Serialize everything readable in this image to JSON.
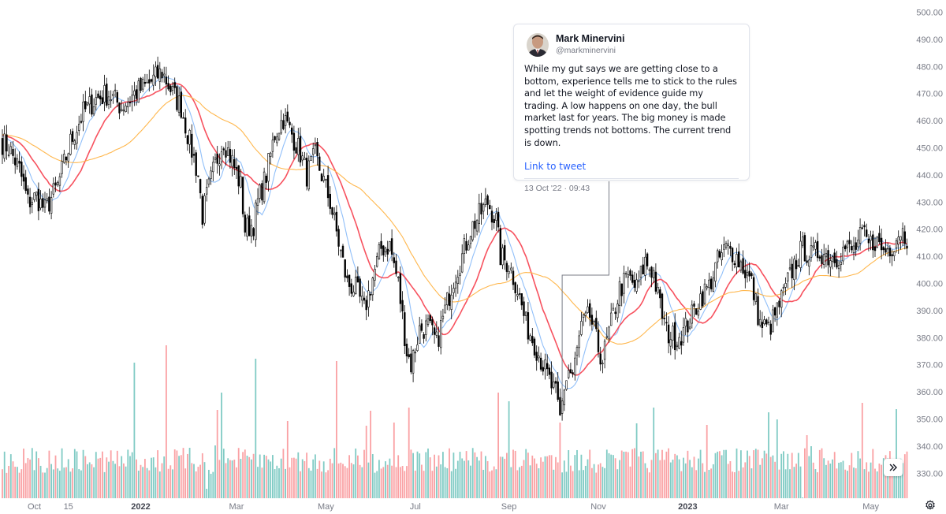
{
  "tweet": {
    "name": "Mark Minervini",
    "handle": "@markminervini",
    "text": "While my gut says we are getting close to a bottom, experience tells me to stick to the rules and let the weight of evidence guide my trading. A low happens on one day, the bull market last for years. The big money is made spotting trends not bottoms. The current trend is down.",
    "link_label": "Link to tweet",
    "date": "13 Oct '22 · 09:43"
  },
  "controls": {
    "scroll_icon": "double-chevron-right-icon",
    "settings_icon": "gear-icon"
  },
  "colors": {
    "candle": "#000000",
    "ma_fast": "#90bff9",
    "ma_mid": "#f7525f",
    "ma_slow": "#ffb74d",
    "volume_up": "#80cbc4",
    "volume_down": "#faa1a4"
  },
  "chart_data": {
    "type": "candlestick",
    "y_axis": {
      "position": "right",
      "ticks": [
        "500.00",
        "490.00",
        "480.00",
        "470.00",
        "460.00",
        "450.00",
        "440.00",
        "430.00",
        "420.00",
        "410.00",
        "400.00",
        "390.00",
        "380.00",
        "370.00",
        "360.00",
        "350.00",
        "340.00",
        "330.00"
      ]
    },
    "x_axis": {
      "ticks": [
        {
          "label": "Oct",
          "day": 15,
          "bold": false
        },
        {
          "label": "15",
          "day": 31,
          "bold": false
        },
        {
          "label": "2022",
          "day": 65,
          "bold": true
        },
        {
          "label": "Mar",
          "day": 110,
          "bold": false
        },
        {
          "label": "May",
          "day": 152,
          "bold": false
        },
        {
          "label": "Jul",
          "day": 194,
          "bold": false
        },
        {
          "label": "Sep",
          "day": 238,
          "bold": false
        },
        {
          "label": "Nov",
          "day": 280,
          "bold": false
        },
        {
          "label": "2023",
          "day": 322,
          "bold": true
        },
        {
          "label": "Mar",
          "day": 366,
          "bold": false
        },
        {
          "label": "May",
          "day": 408,
          "bold": false
        }
      ]
    },
    "day_count": 426,
    "price_path": [
      [
        0,
        452
      ],
      [
        3,
        450
      ],
      [
        8,
        442
      ],
      [
        12,
        430
      ],
      [
        16,
        432
      ],
      [
        20,
        427
      ],
      [
        26,
        436
      ],
      [
        32,
        452
      ],
      [
        38,
        463
      ],
      [
        44,
        468
      ],
      [
        50,
        470
      ],
      [
        56,
        465
      ],
      [
        62,
        470
      ],
      [
        68,
        473
      ],
      [
        75,
        478
      ],
      [
        80,
        470
      ],
      [
        84,
        465
      ],
      [
        88,
        452
      ],
      [
        92,
        440
      ],
      [
        94,
        425
      ],
      [
        96,
        432
      ],
      [
        100,
        444
      ],
      [
        104,
        453
      ],
      [
        108,
        445
      ],
      [
        112,
        436
      ],
      [
        114,
        420
      ],
      [
        118,
        422
      ],
      [
        120,
        430
      ],
      [
        124,
        440
      ],
      [
        128,
        455
      ],
      [
        132,
        461
      ],
      [
        136,
        455
      ],
      [
        140,
        448
      ],
      [
        143,
        440
      ],
      [
        147,
        447
      ],
      [
        150,
        440
      ],
      [
        154,
        430
      ],
      [
        158,
        415
      ],
      [
        162,
        400
      ],
      [
        166,
        398
      ],
      [
        170,
        390
      ],
      [
        174,
        402
      ],
      [
        178,
        413
      ],
      [
        182,
        414
      ],
      [
        186,
        400
      ],
      [
        190,
        375
      ],
      [
        192,
        370
      ],
      [
        196,
        383
      ],
      [
        200,
        384
      ],
      [
        204,
        378
      ],
      [
        208,
        390
      ],
      [
        212,
        402
      ],
      [
        216,
        410
      ],
      [
        220,
        420
      ],
      [
        224,
        425
      ],
      [
        228,
        430
      ],
      [
        232,
        423
      ],
      [
        234,
        410
      ],
      [
        238,
        407
      ],
      [
        242,
        398
      ],
      [
        246,
        385
      ],
      [
        250,
        378
      ],
      [
        254,
        370
      ],
      [
        258,
        362
      ],
      [
        260,
        359
      ],
      [
        262,
        350
      ],
      [
        264,
        362
      ],
      [
        266,
        368
      ],
      [
        268,
        366
      ],
      [
        272,
        384
      ],
      [
        276,
        388
      ],
      [
        280,
        376
      ],
      [
        282,
        372
      ],
      [
        286,
        385
      ],
      [
        290,
        398
      ],
      [
        294,
        402
      ],
      [
        298,
        398
      ],
      [
        302,
        408
      ],
      [
        306,
        404
      ],
      [
        308,
        395
      ],
      [
        312,
        382
      ],
      [
        316,
        380
      ],
      [
        320,
        382
      ],
      [
        324,
        388
      ],
      [
        328,
        395
      ],
      [
        332,
        399
      ],
      [
        336,
        408
      ],
      [
        340,
        413
      ],
      [
        344,
        411
      ],
      [
        348,
        406
      ],
      [
        352,
        400
      ],
      [
        356,
        385
      ],
      [
        360,
        383
      ],
      [
        364,
        390
      ],
      [
        368,
        398
      ],
      [
        372,
        407
      ],
      [
        376,
        413
      ],
      [
        380,
        410
      ],
      [
        384,
        412
      ],
      [
        388,
        410
      ],
      [
        392,
        410
      ],
      [
        396,
        413
      ],
      [
        400,
        412
      ],
      [
        404,
        418
      ],
      [
        407,
        414
      ],
      [
        410,
        416
      ],
      [
        414,
        412
      ],
      [
        418,
        414
      ],
      [
        422,
        420
      ],
      [
        425,
        417
      ]
    ],
    "price_range": [
      327,
      503
    ],
    "moving_averages": [
      {
        "name": "",
        "color": "#90bff9",
        "period": 10
      },
      {
        "name": "",
        "color": "#f7525f",
        "period": 21
      },
      {
        "name": "",
        "color": "#ffb74d",
        "period": 50
      }
    ],
    "volume_spikes": [
      [
        62,
        460
      ],
      [
        77,
        438
      ],
      [
        96,
        620
      ],
      [
        98,
        601
      ],
      [
        100,
        565
      ],
      [
        101,
        520
      ],
      [
        103,
        498
      ],
      [
        112,
        582
      ],
      [
        119,
        455
      ],
      [
        134,
        534
      ],
      [
        157,
        458
      ],
      [
        171,
        540
      ],
      [
        173,
        521
      ],
      [
        184,
        536
      ],
      [
        191,
        517
      ],
      [
        233,
        498
      ],
      [
        238,
        509
      ],
      [
        262,
        536
      ],
      [
        266,
        571
      ],
      [
        298,
        537
      ],
      [
        306,
        517
      ],
      [
        331,
        539
      ],
      [
        360,
        523
      ],
      [
        364,
        532
      ],
      [
        376,
        631
      ],
      [
        378,
        552
      ],
      [
        380,
        566
      ],
      [
        404,
        511
      ],
      [
        420,
        519
      ]
    ]
  },
  "annotation_line": {
    "start_day": 263,
    "end_day": 285
  }
}
